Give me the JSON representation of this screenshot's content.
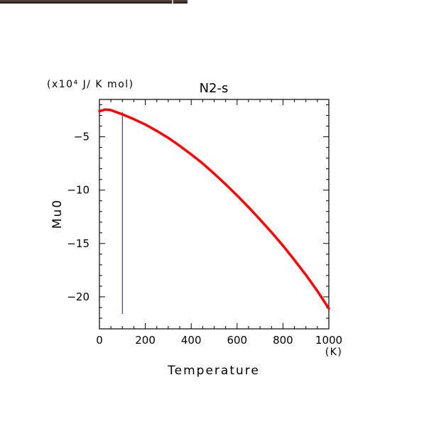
{
  "chart_data": {
    "type": "line",
    "title": "N2-s",
    "xlabel": "Temperature",
    "ylabel": "Mu0",
    "x_unit": "(K)",
    "y_unit": "(x10⁴ J/ K mol)",
    "xlim": [
      0,
      1000
    ],
    "ylim": [
      -23,
      -1.5
    ],
    "x_ticks": [
      0,
      200,
      400,
      600,
      800,
      1000
    ],
    "y_ticks": [
      -5,
      -10,
      -15,
      -20
    ],
    "x_tick_labels": [
      "0",
      "200",
      "400",
      "600",
      "800",
      "1000"
    ],
    "y_tick_labels": [
      "-5",
      "-10",
      "-15",
      "-20"
    ],
    "grid": false,
    "series": [
      {
        "color": "#ff0000",
        "x": [
          0,
          25,
          50,
          100,
          150,
          200,
          250,
          300,
          350,
          400,
          450,
          500,
          550,
          600,
          650,
          700,
          750,
          800,
          850,
          900,
          950,
          1000
        ],
        "y": [
          -2.6,
          -2.45,
          -2.5,
          -2.9,
          -3.35,
          -3.85,
          -4.45,
          -5.1,
          -5.85,
          -6.65,
          -7.5,
          -8.45,
          -9.45,
          -10.5,
          -11.6,
          -12.75,
          -13.95,
          -15.2,
          -16.55,
          -17.95,
          -19.45,
          -21.1
        ]
      }
    ],
    "marker_line": {
      "x": 100,
      "y_from": -2.7,
      "y_to": -21.6,
      "color": "#1a1a80"
    }
  },
  "colors": {
    "curve": "#ff0000",
    "axis": "#000000",
    "marker": "#1a1a80"
  }
}
